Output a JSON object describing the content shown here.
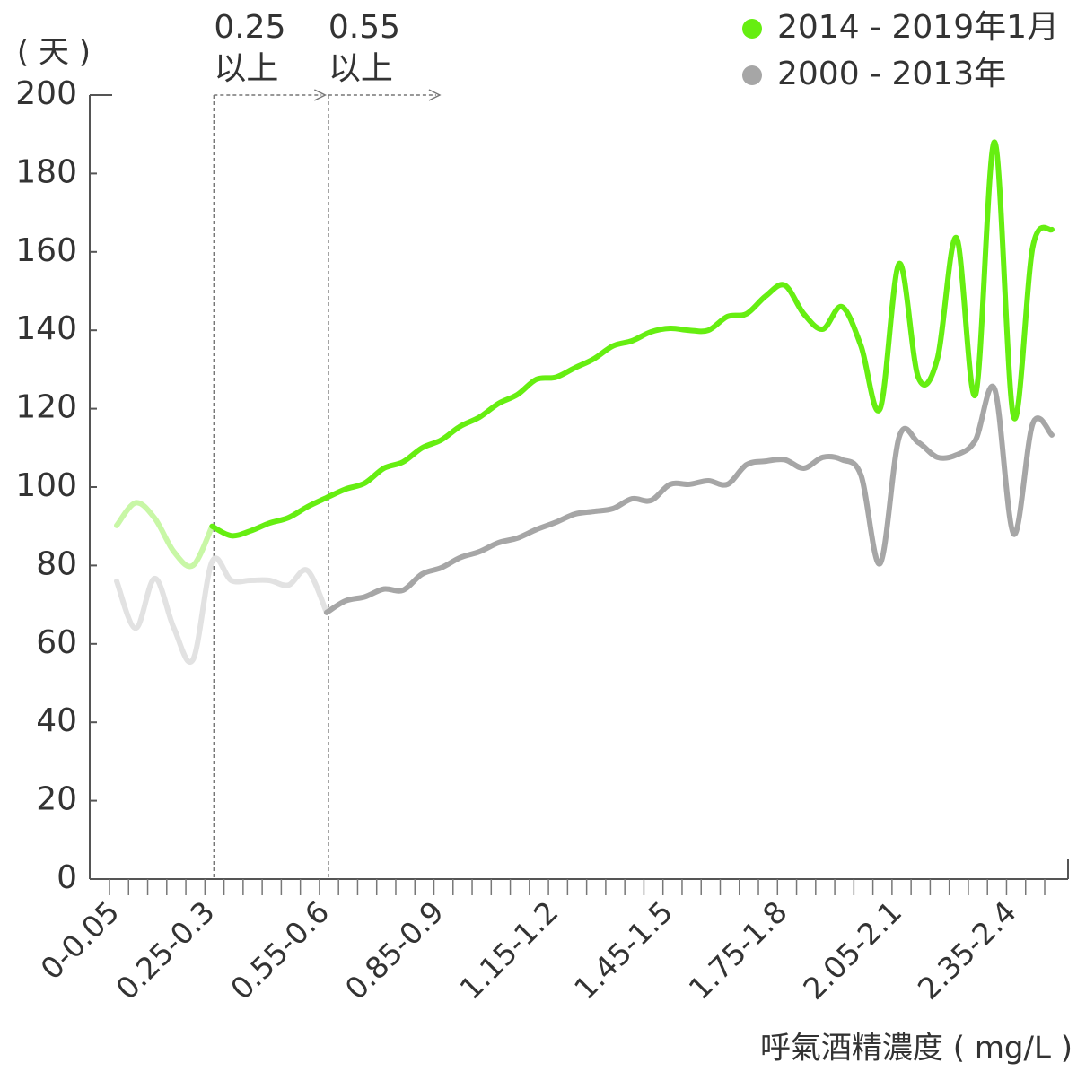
{
  "chart_data": {
    "type": "line",
    "y_label": "( 天 )",
    "x_label": "呼氣酒精濃度 ( mg/L )",
    "categories": [
      "0-0.05",
      null,
      null,
      null,
      null,
      "0.25-0.3",
      null,
      null,
      null,
      null,
      null,
      "0.55-0.6",
      null,
      null,
      null,
      null,
      null,
      "0.85-0.9",
      null,
      null,
      null,
      null,
      null,
      "1.15-1.2",
      null,
      null,
      null,
      null,
      null,
      "1.45-1.5",
      null,
      null,
      null,
      null,
      null,
      "1.75-1.8",
      null,
      null,
      null,
      null,
      null,
      "2.05-2.1",
      null,
      null,
      null,
      null,
      null,
      "2.35-2.4",
      null,
      null
    ],
    "series": [
      {
        "name": "2014 - 2019年1月",
        "color": "#66ee11",
        "faded_color": "#c8f7a6",
        "values": [
          90.2,
          96,
          92,
          83.5,
          80,
          90,
          87.6,
          88.8,
          90.8,
          92.2,
          95,
          97.3,
          99.5,
          101,
          104.8,
          106.4,
          110,
          112,
          115.5,
          117.8,
          121.3,
          123.6,
          127.5,
          128,
          130.4,
          132.7,
          136,
          137.3,
          139.6,
          140.5,
          140,
          140,
          143.5,
          144.2,
          148.7,
          151.5,
          144.2,
          140.3,
          146,
          136,
          120,
          157,
          128,
          132.7,
          163.6,
          123.6,
          188,
          117.8,
          161.3,
          165.7
        ]
      },
      {
        "name": "2000 - 2013年",
        "color": "#a6a6a6",
        "faded_color": "#e2e2e2",
        "values": [
          76,
          64,
          76.7,
          64,
          56,
          81,
          76.2,
          76.2,
          76.2,
          75,
          78.7,
          68,
          71,
          72,
          74,
          73.7,
          77.8,
          79.4,
          82,
          83.5,
          85.8,
          87,
          89.2,
          91,
          93.1,
          93.8,
          94.5,
          97,
          96.6,
          100.7,
          100.7,
          101.6,
          100.7,
          105.7,
          106.6,
          107,
          104.8,
          107.6,
          107,
          103,
          80.5,
          112.8,
          111.4,
          107.6,
          108.2,
          112,
          125,
          88,
          116.2,
          113.3
        ]
      }
    ],
    "annotations": [
      {
        "value": "0.25",
        "text": "以上",
        "category": "0.25-0.3"
      },
      {
        "value": "0.55",
        "text": "以上",
        "category": "0.55-0.6"
      }
    ],
    "ylim": [
      0,
      200
    ],
    "yticks": [
      0,
      20,
      40,
      60,
      80,
      100,
      120,
      140,
      160,
      180,
      200
    ],
    "legend": "top-right"
  }
}
